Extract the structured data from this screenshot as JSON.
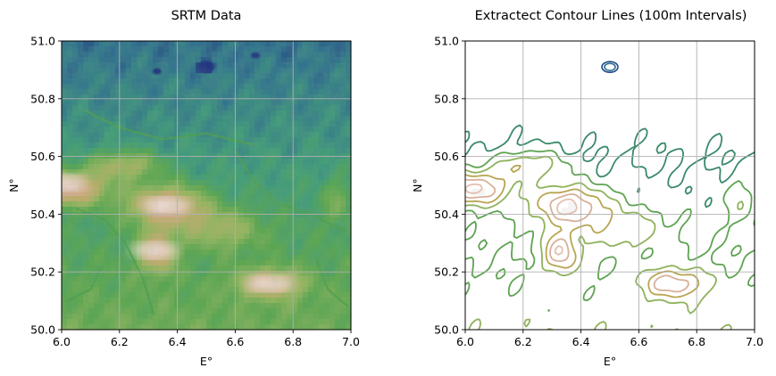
{
  "chart_data": [
    {
      "type": "heatmap",
      "title": "SRTM Data",
      "xlabel": "E°",
      "ylabel": "N°",
      "xlim": [
        6.0,
        7.0
      ],
      "ylim": [
        50.0,
        51.0
      ],
      "xticks": [
        6.0,
        6.2,
        6.4,
        6.6,
        6.8,
        7.0
      ],
      "yticks": [
        50.0,
        50.2,
        50.4,
        50.6,
        50.8,
        51.0
      ],
      "xtick_labels": [
        "6.0",
        "6.2",
        "6.4",
        "6.6",
        "6.8",
        "7.0"
      ],
      "ytick_labels": [
        "50.0",
        "50.2",
        "50.4",
        "50.6",
        "50.8",
        "51.0"
      ],
      "grid": true,
      "colormap": "gist_earth",
      "colormap_stops": [
        "#1a2f7a",
        "#2e6f8e",
        "#3f9a7a",
        "#5aa54f",
        "#93b45e",
        "#c2ab6d",
        "#d7ab92",
        "#ecd2cc",
        "#ffffff"
      ],
      "features": [
        {
          "label": "low-lying lake",
          "lon": 6.5,
          "lat": 50.91
        },
        {
          "label": "low area",
          "lon": 6.33,
          "lat": 50.895
        },
        {
          "label": "low area",
          "lon": 6.67,
          "lat": 50.95
        },
        {
          "label": "highland ridge",
          "lon": 6.0,
          "lat": 50.51
        },
        {
          "label": "highland ridge",
          "lon": 6.36,
          "lat": 50.43
        },
        {
          "label": "highland ridge",
          "lon": 6.32,
          "lat": 50.275
        },
        {
          "label": "highland ridge",
          "lon": 6.72,
          "lat": 50.16
        }
      ]
    },
    {
      "type": "contour",
      "title": "Extractect Contour Lines (100m Intervals)",
      "xlabel": "E°",
      "ylabel": "N°",
      "xlim": [
        6.0,
        7.0
      ],
      "ylim": [
        50.0,
        51.0
      ],
      "xticks": [
        6.0,
        6.2,
        6.4,
        6.6,
        6.8,
        7.0
      ],
      "yticks": [
        50.0,
        50.2,
        50.4,
        50.6,
        50.8,
        51.0
      ],
      "xtick_labels": [
        "6.0",
        "6.2",
        "6.4",
        "6.6",
        "6.8",
        "7.0"
      ],
      "ytick_labels": [
        "50.0",
        "50.2",
        "50.4",
        "50.6",
        "50.8",
        "51.0"
      ],
      "grid": true,
      "interval_m": 100,
      "levels": [
        {
          "level_m": 100,
          "color": "#3a8a6a"
        },
        {
          "level_m": 200,
          "color": "#5ea352"
        },
        {
          "level_m": 300,
          "color": "#8fb25c"
        },
        {
          "level_m": 400,
          "color": "#b8a552"
        },
        {
          "level_m": 500,
          "color": "#d8b09a"
        },
        {
          "level_m": 600,
          "color": "#e3c0b0"
        }
      ],
      "depression_colors": [
        "#1e4a8a",
        "#2a6e8c"
      ]
    }
  ]
}
